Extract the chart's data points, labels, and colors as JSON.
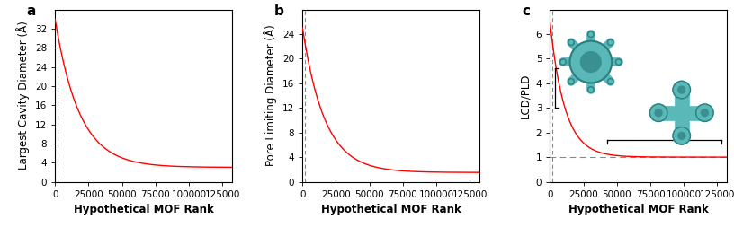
{
  "n_points": 132000,
  "panel_a": {
    "label": "a",
    "ylabel": "Largest Cavity Diameter (Å)",
    "xlabel": "Hypothetical MOF Rank",
    "ylim": [
      0,
      36
    ],
    "xlim": [
      0,
      132000
    ],
    "yticks": [
      0,
      4,
      8,
      12,
      16,
      20,
      24,
      28,
      32
    ],
    "xticks": [
      0,
      25000,
      50000,
      75000,
      100000,
      125000
    ],
    "xtick_labels": [
      "0",
      "25000",
      "50000",
      "75000",
      "100000",
      "125000"
    ],
    "y_start": 34.0,
    "y_end": 3.0,
    "decay": 5.5e-05,
    "vline_x": 2000,
    "line_color": "#ff0000"
  },
  "panel_b": {
    "label": "b",
    "ylabel": "Pore Limiting Diameter (Å)",
    "xlabel": "Hypothetical MOF Rank",
    "ylim": [
      0,
      28
    ],
    "xlim": [
      0,
      132000
    ],
    "yticks": [
      0,
      4,
      8,
      12,
      16,
      20,
      24
    ],
    "xticks": [
      0,
      25000,
      50000,
      75000,
      100000,
      125000
    ],
    "xtick_labels": [
      "0",
      "25000",
      "50000",
      "75000",
      "100000",
      "125000"
    ],
    "y_start": 25.0,
    "y_end": 1.5,
    "decay": 6e-05,
    "vline_x": 2000,
    "line_color": "#ff0000"
  },
  "panel_c": {
    "label": "c",
    "ylabel": "LCD/PLD",
    "xlabel": "Hypothetical MOF Rank",
    "ylim": [
      0,
      7
    ],
    "xlim": [
      0,
      132000
    ],
    "yticks": [
      0,
      1,
      2,
      3,
      4,
      5,
      6
    ],
    "xticks": [
      0,
      25000,
      50000,
      75000,
      100000,
      125000
    ],
    "xtick_labels": [
      "0",
      "25000",
      "50000",
      "75000",
      "100000",
      "125000"
    ],
    "y_start": 6.5,
    "y_end": 1.0,
    "decay": 9e-05,
    "hline_y": 1.0,
    "vline_x": 2000,
    "line_color": "#ff0000",
    "bracket_left_x": 4000,
    "bracket_left_y1": 3.0,
    "bracket_left_y2": 4.6,
    "bracket_right_y": 1.68,
    "bracket_right_x1": 43000,
    "bracket_right_x2": 128000
  },
  "tick_fontsize": 7.5,
  "label_fontsize": 8.5,
  "panel_label_fontsize": 11,
  "mof_color": "#5ab8b8",
  "mof_dark": "#2a8080",
  "mof_light": "#7dd4d4"
}
